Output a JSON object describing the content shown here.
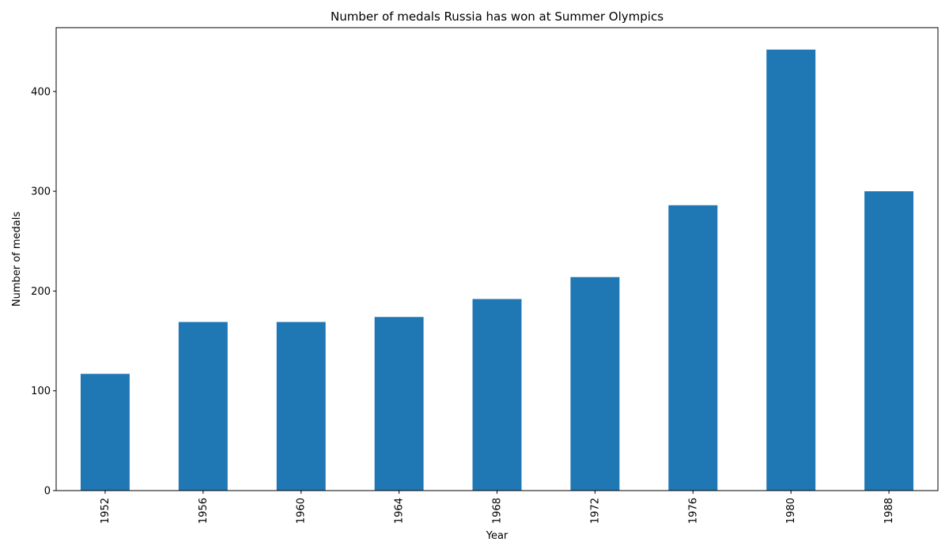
{
  "chart_data": {
    "type": "bar",
    "title": "Number of medals Russia has won at Summer Olympics",
    "xlabel": "Year",
    "ylabel": "Number of medals",
    "categories": [
      "1952",
      "1956",
      "1960",
      "1964",
      "1968",
      "1972",
      "1976",
      "1980",
      "1988"
    ],
    "values": [
      117,
      169,
      169,
      174,
      192,
      214,
      286,
      442,
      300
    ],
    "ylim": [
      0,
      464
    ],
    "yticks": [
      0,
      100,
      200,
      300,
      400
    ],
    "bar_color": "#1f77b4",
    "grid": false,
    "legend": "none"
  }
}
